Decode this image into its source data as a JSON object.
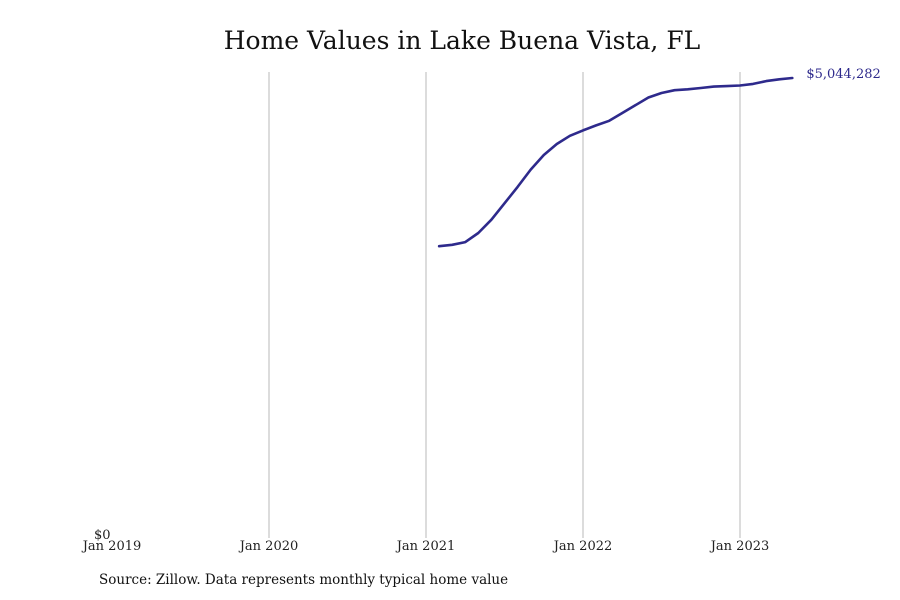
{
  "chart_data": {
    "type": "line",
    "title": "Home Values in Lake Buena Vista, FL",
    "xlabel": "",
    "ylabel": "",
    "x_ticks": [
      {
        "date": "2019-01",
        "label": "Jan 2019"
      },
      {
        "date": "2020-01",
        "label": "Jan 2020"
      },
      {
        "date": "2021-01",
        "label": "Jan 2021"
      },
      {
        "date": "2022-01",
        "label": "Jan 2022"
      },
      {
        "date": "2023-01",
        "label": "Jan 2023"
      }
    ],
    "y_tick_label": "$0",
    "ylim": [
      0,
      5350000
    ],
    "xlim": [
      "2019-01",
      "2023-09"
    ],
    "grid": "vertical",
    "line_color": "#2e2a8c",
    "end_label": "$5,044,282",
    "series": [
      {
        "x": [
          "2021-02",
          "2021-03",
          "2021-04",
          "2021-05",
          "2021-06",
          "2021-07",
          "2021-08",
          "2021-09",
          "2021-10",
          "2021-11",
          "2021-12",
          "2022-01",
          "2022-02",
          "2022-03",
          "2022-04",
          "2022-05",
          "2022-06",
          "2022-07",
          "2022-08",
          "2022-09",
          "2022-10",
          "2022-11",
          "2022-12",
          "2023-01",
          "2023-02",
          "2023-03",
          "2023-04",
          "2023-05"
        ],
        "y": [
          3200000,
          3215000,
          3245000,
          3345000,
          3490000,
          3670000,
          3850000,
          4040000,
          4200000,
          4320000,
          4410000,
          4470000,
          4525000,
          4575000,
          4660000,
          4745000,
          4830000,
          4880000,
          4910000,
          4920000,
          4935000,
          4950000,
          4955000,
          4962000,
          4980000,
          5010000,
          5030000,
          5044282
        ]
      }
    ]
  },
  "footer": {
    "source": "Source: Zillow. Data represents monthly typical home value"
  }
}
